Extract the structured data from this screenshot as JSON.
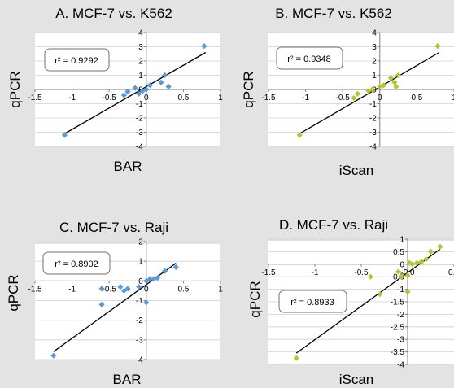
{
  "chart_data": [
    {
      "type": "scatter",
      "title": "A. MCF-7 vs. K562",
      "xlabel": "BAR",
      "ylabel": "qPCR",
      "r2_label": "r² = 0.9292",
      "xlim": [
        -1.5,
        1
      ],
      "ylim": [
        -4,
        4
      ],
      "xticks": [
        -1.5,
        -1,
        -0.5,
        0,
        0.5,
        1
      ],
      "yticks": [
        -4,
        -3,
        -2,
        -1,
        0,
        1,
        2,
        3,
        4
      ],
      "xtick_labels": [
        "-1.5",
        "-1",
        "-0.5",
        "0",
        "0.5",
        "1"
      ],
      "ytick_labels": [
        "-4",
        "-3",
        "-2",
        "-1",
        "0",
        "1",
        "2",
        "3",
        "4"
      ],
      "color": "#5b9bd5",
      "points": [
        [
          -1.1,
          -3.2
        ],
        [
          -0.3,
          -0.4
        ],
        [
          -0.25,
          -0.15
        ],
        [
          -0.15,
          0.1
        ],
        [
          -0.1,
          -0.3
        ],
        [
          -0.05,
          -0.1
        ],
        [
          0.0,
          0.0
        ],
        [
          0.05,
          0.3
        ],
        [
          0.2,
          0.5
        ],
        [
          0.25,
          1.0
        ],
        [
          0.3,
          0.2
        ],
        [
          0.78,
          3.05
        ]
      ],
      "trendline": [
        [
          -1.1,
          -3.1
        ],
        [
          0.8,
          2.6
        ]
      ]
    },
    {
      "type": "scatter",
      "title": "B. MCF-7 vs. K562",
      "xlabel": "iScan",
      "ylabel": "qPCR",
      "r2_label": "r² = 0.9348",
      "xlim": [
        -1.5,
        1
      ],
      "ylim": [
        -4,
        4
      ],
      "xticks": [
        -1.5,
        -1,
        -0.5,
        0,
        0.5,
        1
      ],
      "yticks": [
        -4,
        -3,
        -2,
        -1,
        0,
        1,
        2,
        3,
        4
      ],
      "xtick_labels": [
        "-1.5",
        "-1",
        "-0.5",
        "0",
        "0.5",
        "1"
      ],
      "ytick_labels": [
        "-4",
        "-3",
        "-2",
        "-1",
        "0",
        "1",
        "2",
        "3",
        "4"
      ],
      "color": "#b5c432",
      "points": [
        [
          -1.08,
          -3.2
        ],
        [
          -0.35,
          -0.6
        ],
        [
          -0.3,
          -0.3
        ],
        [
          -0.15,
          -0.1
        ],
        [
          -0.1,
          0.0
        ],
        [
          0.0,
          0.2
        ],
        [
          0.05,
          0.3
        ],
        [
          0.15,
          0.8
        ],
        [
          0.2,
          0.5
        ],
        [
          0.22,
          0.2
        ],
        [
          0.25,
          1.0
        ],
        [
          0.78,
          3.05
        ]
      ],
      "trendline": [
        [
          -1.08,
          -3.1
        ],
        [
          0.8,
          2.6
        ]
      ]
    },
    {
      "type": "scatter",
      "title": "C. MCF-7 vs. Raji",
      "xlabel": "BAR",
      "ylabel": "qPCR",
      "r2_label": "r² = 0.8902",
      "xlim": [
        -1.5,
        1
      ],
      "ylim": [
        -4,
        2
      ],
      "xticks": [
        -1.5,
        -1,
        -0.5,
        0,
        0.5,
        1
      ],
      "yticks": [
        -4,
        -3,
        -2,
        -1,
        0,
        1,
        2
      ],
      "xtick_labels": [
        "-1.5",
        "-1",
        "-0.5",
        "0",
        "0.5",
        "1"
      ],
      "ytick_labels": [
        "-4",
        "-3",
        "-2",
        "-1",
        "0",
        "1",
        "2"
      ],
      "color": "#5b9bd5",
      "points": [
        [
          -1.25,
          -3.8
        ],
        [
          -0.6,
          -1.2
        ],
        [
          -0.6,
          -0.4
        ],
        [
          -0.35,
          -0.3
        ],
        [
          -0.3,
          -0.5
        ],
        [
          -0.25,
          -0.4
        ],
        [
          -0.1,
          -0.3
        ],
        [
          0.0,
          0.0
        ],
        [
          0.0,
          -1.1
        ],
        [
          0.05,
          0.1
        ],
        [
          0.1,
          0.1
        ],
        [
          0.15,
          0.15
        ],
        [
          0.25,
          0.5
        ],
        [
          0.4,
          0.7
        ]
      ],
      "trendline": [
        [
          -1.25,
          -3.6
        ],
        [
          0.4,
          0.9
        ]
      ]
    },
    {
      "type": "scatter",
      "title": "D. MCF-7 vs. Raji",
      "xlabel": "iScan",
      "ylabel": "qPCR",
      "r2_label": "r² = 0.8933",
      "xlim": [
        -1.5,
        0.5
      ],
      "ylim": [
        -4,
        1
      ],
      "xticks": [
        -1.5,
        -1,
        -0.5,
        0,
        0.5
      ],
      "yticks": [
        -4,
        -3.5,
        -3,
        -2.5,
        -2,
        -1.5,
        -1,
        -0.5,
        0,
        0.5,
        1
      ],
      "xtick_labels": [
        "-1.5",
        "-1",
        "-0.5",
        "-0.0",
        "0.5"
      ],
      "ytick_labels": [
        "-4",
        "-3.5",
        "-3",
        "-2.5",
        "-2",
        "-1.5",
        "-1",
        "-0.5",
        "0",
        "0.5",
        "1"
      ],
      "color": "#b5c432",
      "points": [
        [
          -1.2,
          -3.75
        ],
        [
          -0.4,
          -0.5
        ],
        [
          -0.3,
          -1.2
        ],
        [
          -0.1,
          -0.3
        ],
        [
          -0.07,
          -0.5
        ],
        [
          0.0,
          -0.45
        ],
        [
          0.0,
          -1.1
        ],
        [
          0.02,
          0.05
        ],
        [
          0.05,
          0.0
        ],
        [
          0.1,
          0.05
        ],
        [
          0.15,
          0.1
        ],
        [
          0.2,
          0.2
        ],
        [
          0.25,
          0.5
        ],
        [
          0.35,
          0.7
        ]
      ],
      "trendline": [
        [
          -1.2,
          -3.55
        ],
        [
          0.35,
          0.6
        ]
      ]
    }
  ]
}
